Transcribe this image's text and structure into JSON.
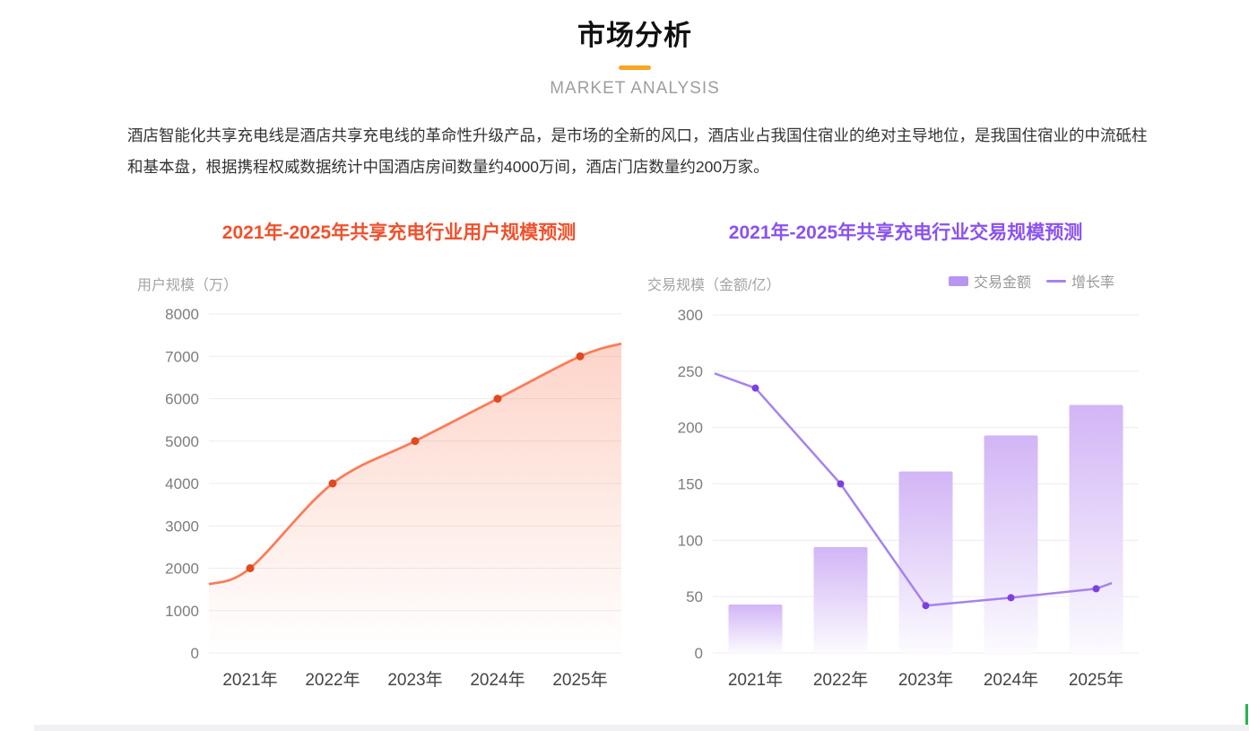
{
  "header": {
    "title": "市场分析",
    "subtitle": "MARKET ANALYSIS",
    "accent_color": "#f5a623"
  },
  "intro": {
    "text": "酒店智能化共享充电线是酒店共享充电线的革命性升级产品，是市场的全新的风口，酒店业占我国住宿业的绝对主导地位，是我国住宿业的中流砥柱和基本盘，根据携程权威数据统计中国酒店房间数量约4000万间，酒店门店数量约200万家。"
  },
  "chart_data": [
    {
      "type": "area",
      "title": "2021年-2025年共享充电行业用户规模预测",
      "title_color": "#f0512c",
      "axis_name": "用户规模（万）",
      "ylabel": "用户规模（万）",
      "xlabel": "",
      "categories": [
        "2021年",
        "2022年",
        "2023年",
        "2024年",
        "2025年"
      ],
      "values": [
        2000,
        4000,
        5000,
        6000,
        7000
      ],
      "edge_values": {
        "left": 1620,
        "right": 7300
      },
      "ylim": [
        0,
        8000
      ],
      "yticks": [
        0,
        1000,
        2000,
        3000,
        4000,
        5000,
        6000,
        7000,
        8000
      ],
      "grid": true,
      "smooth": true,
      "colors": {
        "line": "#f97d5a",
        "marker": "#e04a1e",
        "area_top": "rgba(249,125,90,0.33)",
        "area_bottom": "rgba(249,125,90,0)",
        "gridline": "#ececec",
        "ytick_label": "#7d7d7d",
        "xtick_label": "#444444"
      }
    },
    {
      "type": "combo",
      "title": "2021年-2025年共享充电行业交易规模预测",
      "title_color": "#8b52f0",
      "axis_name": "交易规模（金额/亿）",
      "ylabel": "交易规模（金额/亿）",
      "xlabel": "",
      "categories": [
        "2021年",
        "2022年",
        "2023年",
        "2024年",
        "2025年"
      ],
      "series": [
        {
          "name": "交易金额",
          "type": "bar",
          "values": [
            43,
            94,
            161,
            193,
            220
          ]
        },
        {
          "name": "增长率",
          "type": "line",
          "values": [
            235,
            150,
            42,
            49,
            57
          ],
          "edge_values": {
            "left": 248,
            "right": 62
          }
        }
      ],
      "ylim": [
        0,
        300
      ],
      "yticks": [
        0,
        50,
        100,
        150,
        200,
        250,
        300
      ],
      "grid": true,
      "legend_position": "top-right",
      "colors": {
        "bar_top": "#d2b5f6",
        "bar_bottom": "#fcfbfe",
        "bar_legend_swatch": "#b795f1",
        "line": "#a583ee",
        "line_marker": "#7d3fe0",
        "gridline": "#ececec",
        "ytick_label": "#7d7d7d",
        "xtick_label": "#444444"
      }
    }
  ],
  "decorations": {
    "scrollbar_track_color": "#f1f1f4",
    "scroll_indicator_color": "#26b44e"
  }
}
